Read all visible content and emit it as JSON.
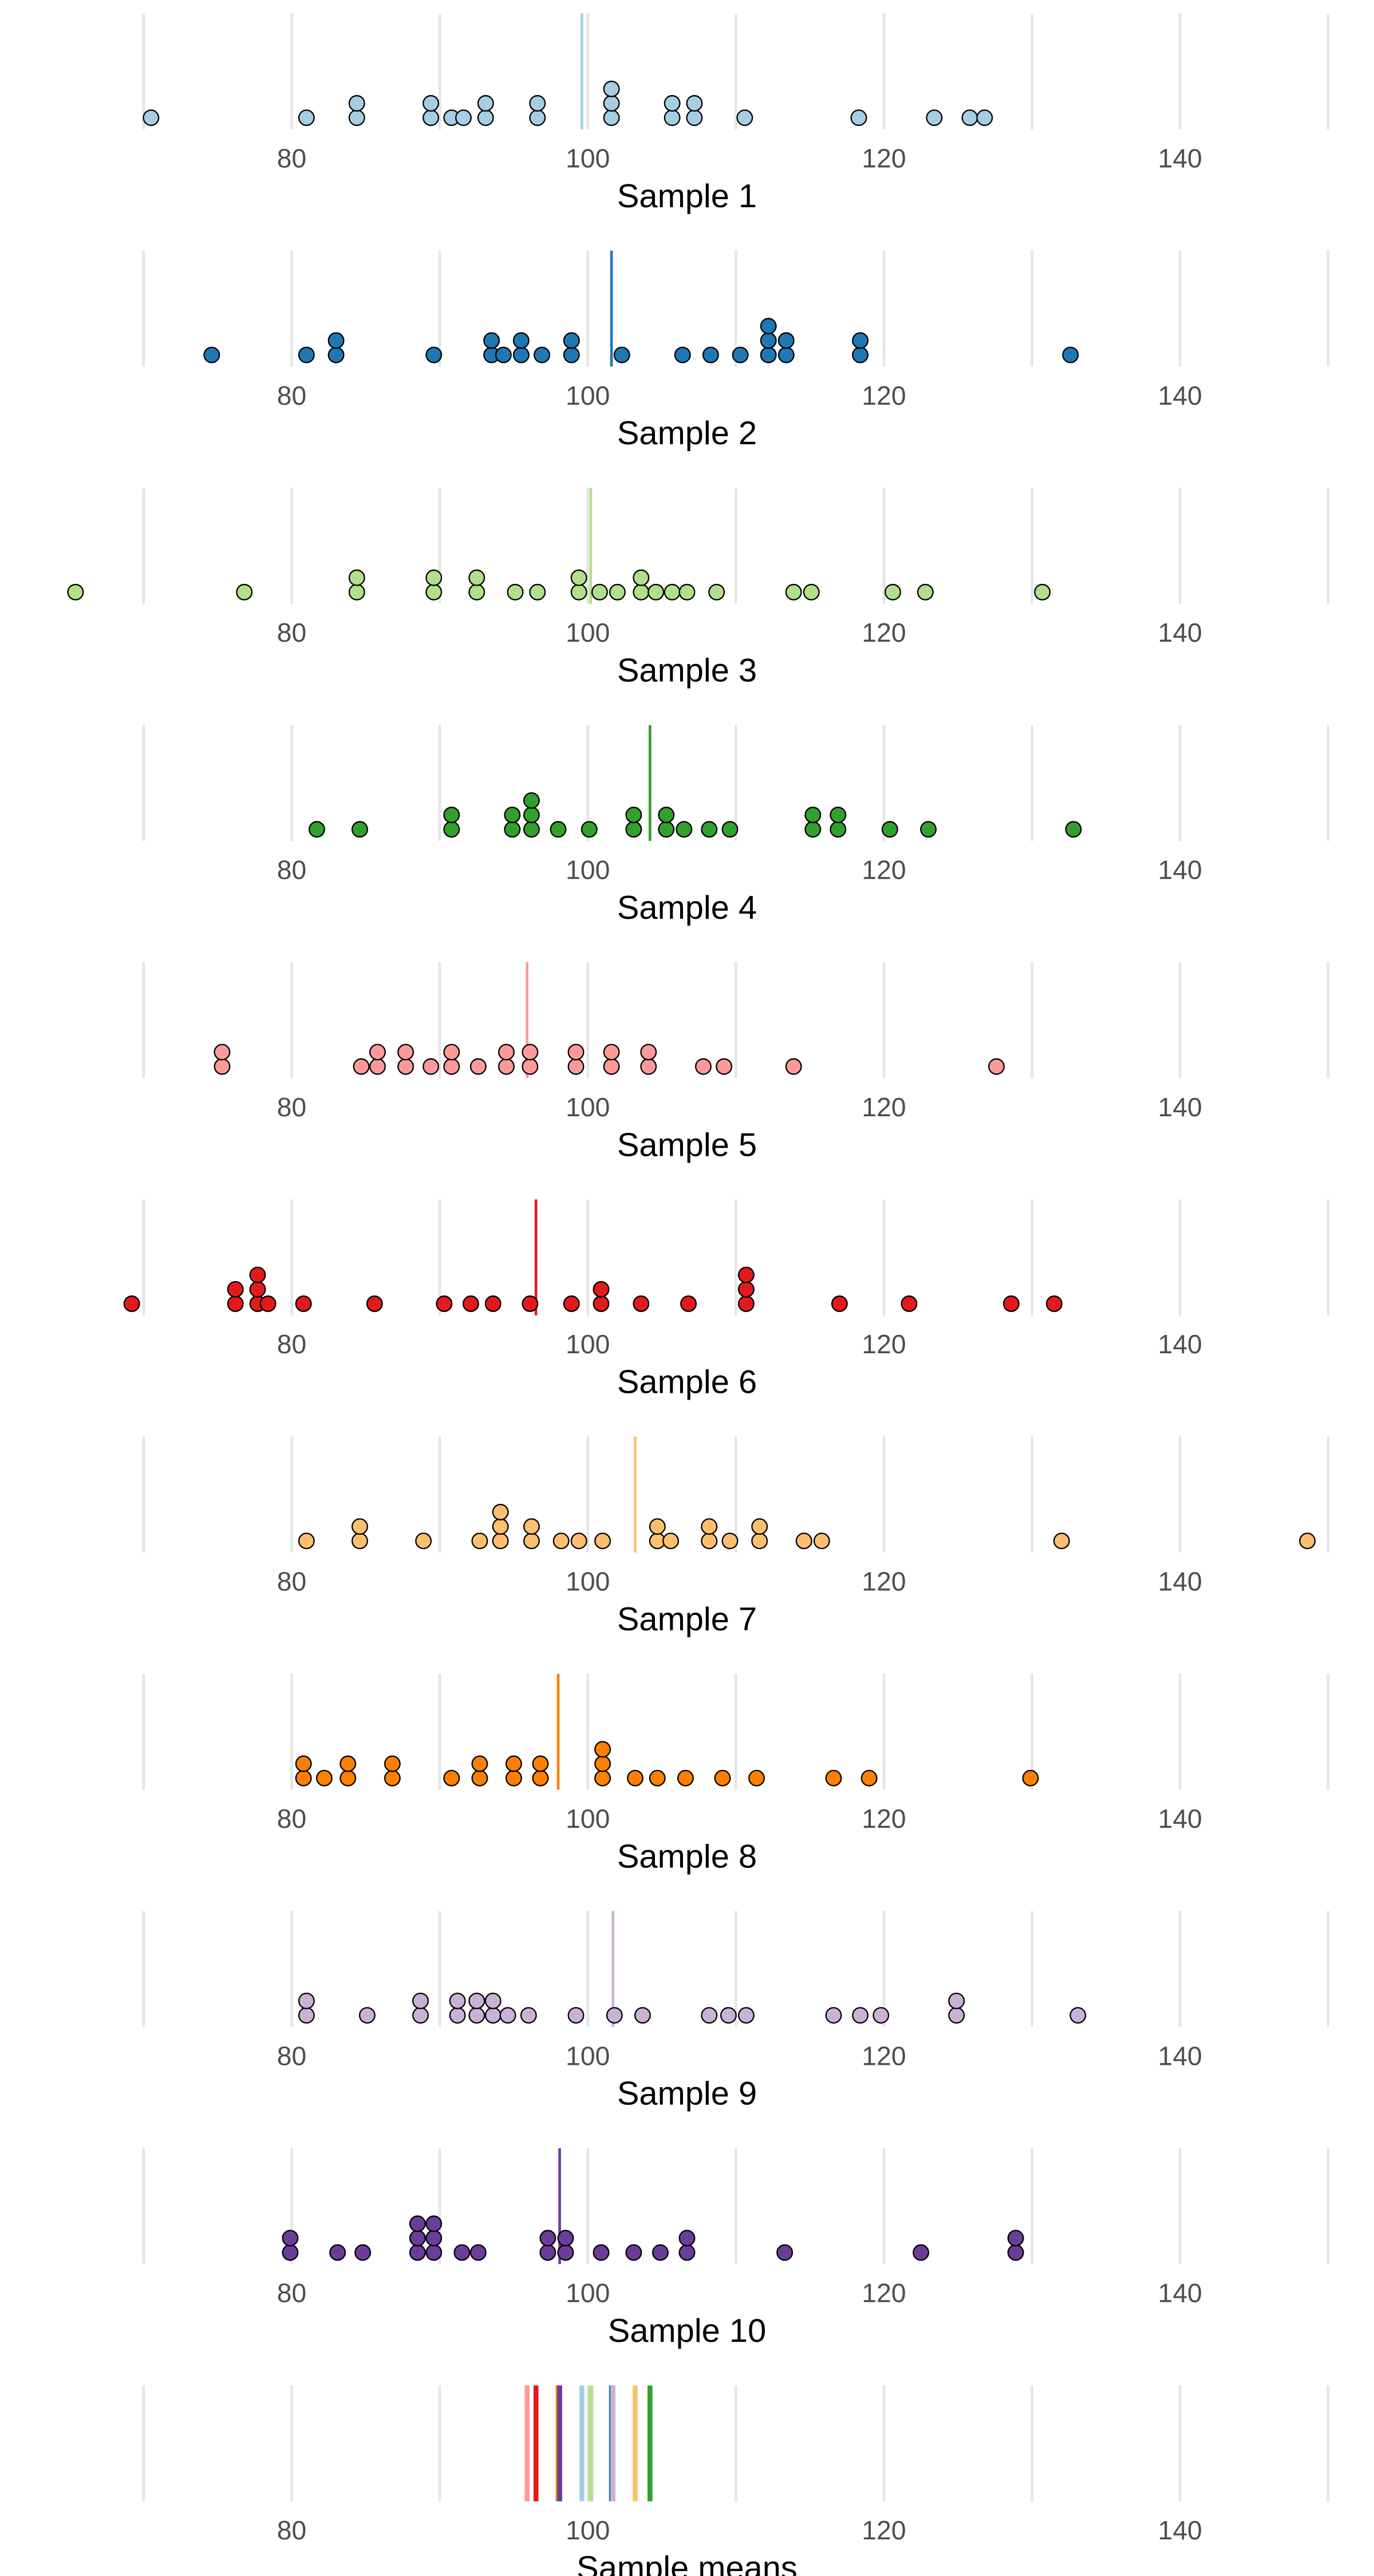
{
  "chart_data": {
    "type": "dotplot",
    "xlim": [
      60.3,
      153.1
    ],
    "xticks": [
      80,
      100,
      120,
      140
    ],
    "grid_lines": [
      70,
      80,
      90,
      100,
      110,
      120,
      130,
      140,
      150
    ],
    "series": [
      {
        "name": "Sample 1",
        "color": "#a6cee3",
        "mean": 99.6,
        "values": [
          70.5,
          81.0,
          84.4,
          84.4,
          89.4,
          89.4,
          90.8,
          91.6,
          93.1,
          93.1,
          96.6,
          96.6,
          101.6,
          101.6,
          101.6,
          105.7,
          105.7,
          107.2,
          107.2,
          110.6,
          118.3,
          123.4,
          125.8,
          126.8
        ]
      },
      {
        "name": "Sample 2",
        "color": "#1f78b4",
        "mean": 101.6,
        "values": [
          74.6,
          81.0,
          83.0,
          83.0,
          89.6,
          93.5,
          93.5,
          94.3,
          95.5,
          95.5,
          96.9,
          98.9,
          98.9,
          102.3,
          106.4,
          108.3,
          110.3,
          112.2,
          112.2,
          112.2,
          113.4,
          113.4,
          118.4,
          118.4,
          132.6
        ]
      },
      {
        "name": "Sample 3",
        "color": "#b2df8a",
        "mean": 100.2,
        "values": [
          65.4,
          76.8,
          84.4,
          84.4,
          89.6,
          89.6,
          92.5,
          92.5,
          95.1,
          96.6,
          99.4,
          99.4,
          100.8,
          102.0,
          103.6,
          103.6,
          104.6,
          105.7,
          106.7,
          108.7,
          113.9,
          115.1,
          120.6,
          122.8,
          130.7
        ]
      },
      {
        "name": "Sample 4",
        "color": "#33a02c",
        "mean": 104.2,
        "values": [
          81.7,
          84.6,
          90.8,
          90.8,
          94.9,
          94.9,
          96.2,
          96.2,
          96.2,
          98.0,
          100.1,
          103.1,
          103.1,
          105.3,
          105.3,
          106.5,
          108.2,
          109.6,
          115.2,
          115.2,
          116.9,
          116.9,
          120.4,
          123.0,
          132.8
        ]
      },
      {
        "name": "Sample 5",
        "color": "#fb9a99",
        "mean": 95.9,
        "values": [
          75.3,
          75.3,
          84.7,
          85.8,
          85.8,
          87.7,
          87.7,
          89.4,
          90.8,
          90.8,
          92.6,
          94.5,
          94.5,
          96.1,
          96.1,
          99.2,
          99.2,
          101.6,
          101.6,
          104.1,
          104.1,
          107.8,
          109.2,
          113.9,
          127.6
        ]
      },
      {
        "name": "Sample 6",
        "color": "#e31a1c",
        "mean": 96.5,
        "values": [
          69.2,
          76.2,
          76.2,
          77.7,
          77.7,
          77.7,
          78.4,
          80.8,
          85.6,
          90.3,
          92.1,
          93.6,
          96.1,
          98.9,
          100.9,
          100.9,
          103.6,
          106.8,
          110.7,
          110.7,
          110.7,
          117.0,
          121.7,
          128.6,
          131.5
        ]
      },
      {
        "name": "Sample 7",
        "color": "#fdbf6f",
        "mean": 103.2,
        "values": [
          81.0,
          84.6,
          84.6,
          88.9,
          92.7,
          94.1,
          94.1,
          94.1,
          96.2,
          96.2,
          98.2,
          99.4,
          101.0,
          104.7,
          104.7,
          105.6,
          108.2,
          108.2,
          109.6,
          111.6,
          111.6,
          114.6,
          115.8,
          132.0,
          148.6
        ]
      },
      {
        "name": "Sample 8",
        "color": "#ff7f00",
        "mean": 98.0,
        "values": [
          80.8,
          80.8,
          82.2,
          83.8,
          83.8,
          86.8,
          86.8,
          90.8,
          92.7,
          92.7,
          95.0,
          95.0,
          96.8,
          96.8,
          101.0,
          101.0,
          101.0,
          103.2,
          104.7,
          106.6,
          109.1,
          111.4,
          116.6,
          119.0,
          129.9
        ]
      },
      {
        "name": "Sample 9",
        "color": "#cab2d6",
        "mean": 101.7,
        "values": [
          81.0,
          81.0,
          85.1,
          88.7,
          88.7,
          91.2,
          91.2,
          92.5,
          92.5,
          93.6,
          93.6,
          94.6,
          96.0,
          99.2,
          101.8,
          103.7,
          108.2,
          109.5,
          110.7,
          116.6,
          118.4,
          119.8,
          124.9,
          124.9,
          133.1
        ]
      },
      {
        "name": "Sample 10",
        "color": "#6a3d9a",
        "mean": 98.1,
        "values": [
          79.9,
          79.9,
          83.1,
          84.8,
          88.5,
          88.5,
          88.5,
          89.6,
          89.6,
          89.6,
          91.5,
          92.6,
          97.3,
          97.3,
          98.5,
          98.5,
          100.9,
          103.1,
          104.9,
          106.7,
          106.7,
          113.3,
          122.5,
          128.9,
          128.9
        ]
      }
    ],
    "means_title": "Sample means"
  }
}
